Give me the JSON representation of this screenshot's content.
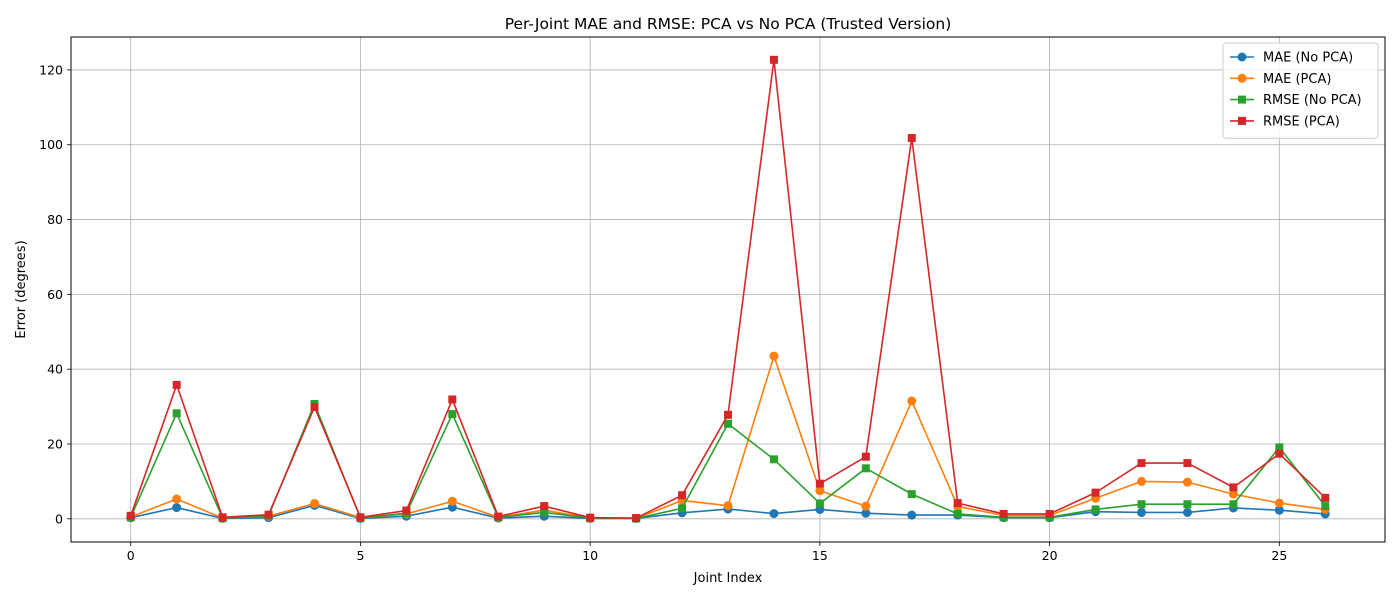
{
  "chart_data": {
    "type": "line",
    "title": "Per-Joint MAE and RMSE: PCA vs No PCA (Trusted Version)",
    "xlabel": "Joint Index",
    "ylabel": "Error (degrees)",
    "xlim": [
      -1.3,
      27.3
    ],
    "ylim": [
      -6.2,
      128.8
    ],
    "xticks": [
      0,
      5,
      10,
      15,
      20,
      25
    ],
    "yticks": [
      0,
      20,
      40,
      60,
      80,
      100,
      120
    ],
    "grid": true,
    "legend_position": "top-right",
    "x": [
      0,
      1,
      2,
      3,
      4,
      5,
      6,
      7,
      8,
      9,
      10,
      11,
      12,
      13,
      14,
      15,
      16,
      17,
      18,
      19,
      20,
      21,
      22,
      23,
      24,
      25,
      26
    ],
    "series": [
      {
        "name": "MAE (No PCA)",
        "color": "#1f77b4",
        "marker": "circle",
        "values": [
          0.3,
          3.0,
          0.1,
          0.3,
          3.6,
          0.1,
          0.7,
          3.1,
          0.2,
          0.7,
          0.1,
          0.1,
          1.6,
          2.6,
          1.4,
          2.5,
          1.5,
          1.0,
          1.0,
          0.3,
          0.3,
          1.9,
          1.7,
          1.7,
          2.9,
          2.3,
          1.3
        ]
      },
      {
        "name": "MAE (PCA)",
        "color": "#ff7f0e",
        "marker": "circle",
        "values": [
          0.5,
          5.3,
          0.2,
          0.7,
          4.1,
          0.3,
          1.3,
          4.7,
          0.4,
          2.3,
          0.2,
          0.1,
          4.9,
          3.5,
          43.5,
          7.5,
          3.4,
          31.5,
          3.3,
          0.9,
          0.9,
          5.5,
          10.0,
          9.8,
          6.6,
          4.2,
          2.5
        ]
      },
      {
        "name": "RMSE (No PCA)",
        "color": "#2ca02c",
        "marker": "square",
        "values": [
          0.4,
          28.2,
          0.2,
          0.8,
          30.7,
          0.2,
          1.5,
          28.0,
          0.4,
          1.7,
          0.2,
          0.1,
          2.8,
          25.4,
          15.9,
          4.1,
          13.5,
          6.6,
          1.3,
          0.4,
          0.4,
          2.5,
          3.9,
          3.9,
          3.9,
          19.1,
          3.4
        ]
      },
      {
        "name": "RMSE (PCA)",
        "color": "#d62728",
        "marker": "square",
        "values": [
          0.8,
          35.8,
          0.4,
          1.1,
          29.9,
          0.4,
          2.2,
          31.9,
          0.6,
          3.4,
          0.3,
          0.2,
          6.3,
          27.8,
          122.7,
          9.4,
          16.6,
          101.8,
          4.2,
          1.3,
          1.3,
          7.0,
          14.9,
          14.9,
          8.4,
          17.4,
          5.6
        ]
      }
    ]
  }
}
